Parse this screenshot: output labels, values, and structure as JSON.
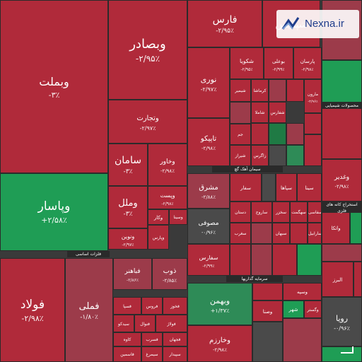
{
  "chart_data": {
    "type": "treemap",
    "title": "",
    "colors": {
      "neg_strong": "#b02a3a",
      "neg_light": "#9c3b4a",
      "flat": "#4a4a4a",
      "pos": "#2e8b57",
      "pos_bright": "#1f9d55"
    },
    "sectors": [
      "فلزات اساسی",
      "سیمان آهک گچ",
      "سرمایه گذاریها",
      "محصولات شیمیایی",
      "استخراج کانه های فلزی"
    ],
    "items": [
      {
        "name": "وبملت",
        "change": "-۳٪",
        "value": -3.0
      },
      {
        "name": "وبصادر",
        "change": "-۲/۹۵٪",
        "value": -2.95
      },
      {
        "name": "وتجارت",
        "change": "-۲/۹۷٪",
        "value": -2.97
      },
      {
        "name": "سامان",
        "change": "-۳٪",
        "value": -3.0
      },
      {
        "name": "وخاور",
        "change": "-۲/۹۸٪",
        "value": -2.98
      },
      {
        "name": "وپاسار",
        "change": "+۲/۵۸٪",
        "value": 2.58
      },
      {
        "name": "وملل",
        "change": "-۳٪",
        "value": -3.0
      },
      {
        "name": "ونوین",
        "change": "-۲/۹۷٪",
        "value": -2.97
      },
      {
        "name": "وپست",
        "change": "-۲/۹۸٪",
        "value": -2.98
      },
      {
        "name": "وکار",
        "change": "",
        "value": -2.9
      },
      {
        "name": "وسینا",
        "change": "",
        "value": -2.9
      },
      {
        "name": "وپارس",
        "change": "",
        "value": -2.9
      },
      {
        "name": "فارس",
        "change": "-۲/۹۵٪",
        "value": -2.95
      },
      {
        "name": "شپدیس",
        "change": "",
        "value": -2.9
      },
      {
        "name": "شکویا",
        "change": "-۲/۹۵٪",
        "value": -2.95
      },
      {
        "name": "نوری",
        "change": "-۲/۹۷٪",
        "value": -2.97
      },
      {
        "name": "پارسان",
        "change": "-۲/۹۸٪",
        "value": -2.98
      },
      {
        "name": "بوعلی",
        "change": "-۲/۹۹٪",
        "value": -2.99
      },
      {
        "name": "مارون",
        "change": "-۲/۹۶٪",
        "value": -2.96
      },
      {
        "name": "تاپیکو",
        "change": "-۲/۹۸٪",
        "value": -2.98
      },
      {
        "name": "شیمیر",
        "change": "",
        "value": -2.9
      },
      {
        "name": "کرماشا",
        "change": "",
        "value": -2.9
      },
      {
        "name": "شاملا",
        "change": "",
        "value": -2.9
      },
      {
        "name": "جم",
        "change": "",
        "value": -2.9
      },
      {
        "name": "شفارس",
        "change": "",
        "value": -2.9
      },
      {
        "name": "زاگرس",
        "change": "",
        "value": -2.9
      },
      {
        "name": "شیراز",
        "change": "",
        "value": -2.9
      },
      {
        "name": "فولاد",
        "change": "-۲/۹۸٪",
        "value": -2.98
      },
      {
        "name": "فملی",
        "change": "-۱/۸۰٪",
        "value": -1.8
      },
      {
        "name": "فباهنر",
        "change": "-۲/۸۶٪",
        "value": -2.86
      },
      {
        "name": "ذوب",
        "change": "-۲/۸۵٪",
        "value": -2.85
      },
      {
        "name": "فسپا",
        "change": "",
        "value": -2.9
      },
      {
        "name": "فخوز",
        "change": "",
        "value": -2.9
      },
      {
        "name": "فنوال",
        "change": "",
        "value": -2.9
      },
      {
        "name": "فولاژ",
        "change": "",
        "value": -2.9
      },
      {
        "name": "فروس",
        "change": "",
        "value": -2.9
      },
      {
        "name": "سیدکو",
        "change": "",
        "value": -2.9
      },
      {
        "name": "کاوه",
        "change": "",
        "value": -2.9
      },
      {
        "name": "فسرب",
        "change": "",
        "value": -2.9
      },
      {
        "name": "فجهان",
        "change": "",
        "value": -2.9
      },
      {
        "name": "فاسمین",
        "change": "",
        "value": -2.9
      },
      {
        "name": "سیمرغ",
        "change": "",
        "value": -2.9
      },
      {
        "name": "سپیدار",
        "change": "",
        "value": -2.9
      },
      {
        "name": "مشرق",
        "change": "-۲/۸۸٪",
        "value": -2.88
      },
      {
        "name": "سفار",
        "change": "",
        "value": -2.9
      },
      {
        "name": "سپاها",
        "change": "",
        "value": -2.9
      },
      {
        "name": "سینا",
        "change": "",
        "value": -2.9
      },
      {
        "name": "مصوفی",
        "change": "-۰/۹۶٪",
        "value": -0.96
      },
      {
        "name": "دستان",
        "change": "",
        "value": -2.9
      },
      {
        "name": "ساروج",
        "change": "",
        "value": -2.9
      },
      {
        "name": "سخزر",
        "change": "",
        "value": -2.9
      },
      {
        "name": "سهگمت",
        "change": "",
        "value": -2.9
      },
      {
        "name": "سفاسی",
        "change": "",
        "value": -2.9
      },
      {
        "name": "سغرب",
        "change": "",
        "value": -2.9
      },
      {
        "name": "سبهان",
        "change": "",
        "value": -2.9
      },
      {
        "name": "سارابیل",
        "change": "",
        "value": -2.9
      },
      {
        "name": "سفارس",
        "change": "-۲/۹۹٪",
        "value": -2.99
      },
      {
        "name": "وبهمن",
        "change": "+۱/۳۷٪",
        "value": 1.37
      },
      {
        "name": "وخارزم",
        "change": "-۲/۹۸٪",
        "value": -2.98
      },
      {
        "name": "وسپه",
        "change": "",
        "value": -2.9
      },
      {
        "name": "وصنا",
        "change": "",
        "value": -2.9
      },
      {
        "name": "شهر",
        "change": "",
        "value": 2.5
      },
      {
        "name": "وگستر",
        "change": "",
        "value": -2.9
      },
      {
        "name": "وغدیر",
        "change": "-۲/۹۸٪",
        "value": -2.98
      },
      {
        "name": "واتکا",
        "change": "",
        "value": -2.9
      },
      {
        "name": "رویا",
        "change": "-۰/۹۶٪",
        "value": -0.96
      },
      {
        "name": "البرز",
        "change": "",
        "value": -2.9
      }
    ]
  },
  "watermark": {
    "text": "Nexna.ir",
    "logo": "nexna-logo"
  }
}
